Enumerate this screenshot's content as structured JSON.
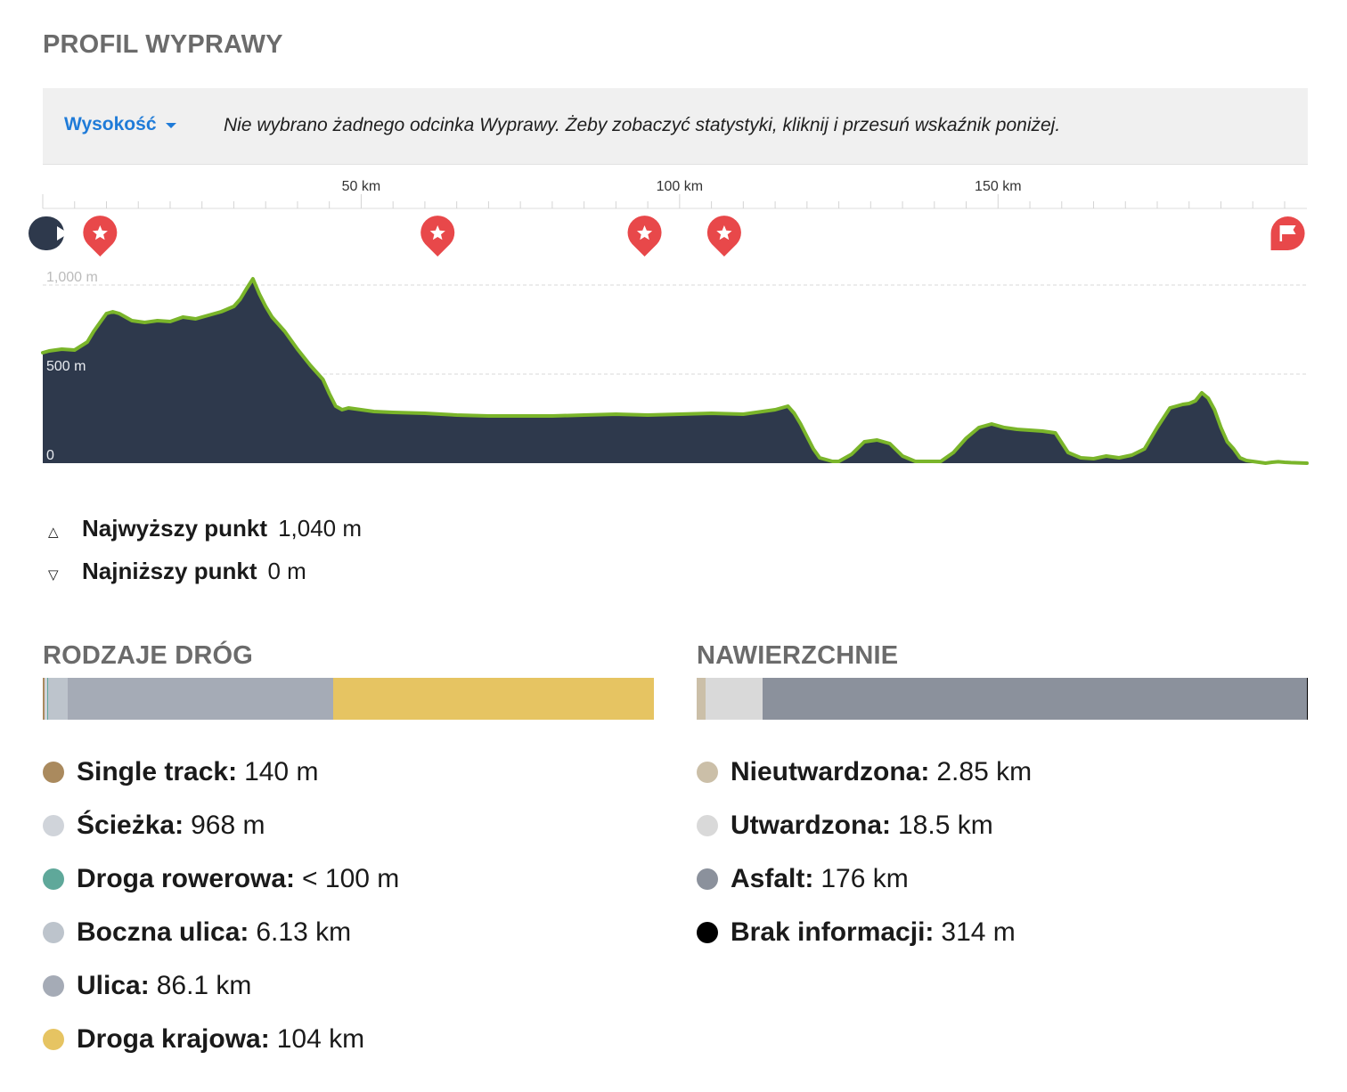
{
  "header": {
    "title": "PROFIL WYPRAWY"
  },
  "toolbar": {
    "metric_label": "Wysokość",
    "hint": "Nie wybrano żadnego odcinka Wyprawy. Żeby zobaczyć statystyki, kliknij i przesuń wskaźnik poniżej."
  },
  "chart_data": {
    "type": "area",
    "total_km": 198.5,
    "xlim": [
      0,
      198.5
    ],
    "ylim": [
      0,
      1040
    ],
    "x_ticks": [
      {
        "value": 50,
        "label": "50 km"
      },
      {
        "value": 100,
        "label": "100 km"
      },
      {
        "value": 150,
        "label": "150 km"
      }
    ],
    "y_ticks": [
      {
        "value": 0,
        "label": "0"
      },
      {
        "value": 500,
        "label": "500 m"
      },
      {
        "value": 1000,
        "label": "1,000 m"
      }
    ],
    "grid": true,
    "series": [
      {
        "x": [
          0,
          1,
          3,
          5,
          7,
          8,
          9,
          10,
          11,
          12,
          14,
          16,
          18,
          20,
          22,
          24,
          26,
          28,
          30,
          31,
          32,
          33,
          34,
          35,
          36,
          38,
          40,
          42,
          44,
          45,
          46,
          47,
          48,
          50,
          52,
          55,
          60,
          65,
          70,
          75,
          80,
          85,
          90,
          95,
          100,
          105,
          110,
          113,
          115,
          117,
          118,
          119,
          120,
          121,
          122,
          123,
          124,
          125,
          127,
          129,
          131,
          133,
          135,
          137,
          139,
          141,
          143,
          145,
          147,
          149,
          151,
          153,
          155,
          157,
          159,
          161,
          163,
          165,
          167,
          169,
          171,
          173,
          175,
          177,
          179,
          180,
          181,
          182,
          183,
          184,
          185,
          186,
          187,
          188,
          189,
          190,
          191,
          192,
          193,
          194,
          195,
          196,
          197,
          198.5
        ],
        "y": [
          620,
          630,
          640,
          635,
          680,
          740,
          790,
          840,
          850,
          840,
          800,
          790,
          800,
          795,
          820,
          810,
          830,
          850,
          880,
          920,
          980,
          1035,
          950,
          880,
          820,
          740,
          640,
          550,
          470,
          390,
          320,
          300,
          310,
          300,
          290,
          285,
          280,
          270,
          265,
          265,
          265,
          270,
          275,
          270,
          275,
          280,
          275,
          290,
          300,
          320,
          280,
          220,
          150,
          80,
          30,
          20,
          10,
          10,
          50,
          120,
          130,
          110,
          40,
          10,
          10,
          10,
          60,
          140,
          200,
          220,
          200,
          190,
          185,
          180,
          170,
          60,
          30,
          25,
          40,
          30,
          45,
          80,
          200,
          310,
          330,
          335,
          350,
          395,
          365,
          300,
          200,
          120,
          80,
          30,
          15,
          10,
          5,
          0,
          5,
          8,
          5,
          3,
          2,
          0
        ]
      }
    ],
    "markers": [
      {
        "km": 0,
        "type": "start"
      },
      {
        "km": 9,
        "type": "highlight"
      },
      {
        "km": 62,
        "type": "highlight"
      },
      {
        "km": 94.5,
        "type": "highlight"
      },
      {
        "km": 107,
        "type": "highlight"
      },
      {
        "km": 195.5,
        "type": "finish"
      }
    ],
    "colors": {
      "fill": "#2e394c",
      "line": "#7ab52a",
      "line_alt": "#d39a3e",
      "grid": "#d8d8d8",
      "marker": "#e8484a",
      "start_marker": "#2e394c"
    }
  },
  "stats": {
    "highest_label": "Najwyższy punkt",
    "highest_value": "1,040 m",
    "lowest_label": "Najniższy punkt",
    "lowest_value": "0 m",
    "highest_icon": "△",
    "lowest_icon": "▽"
  },
  "roads": {
    "title": "RODZAJE DRÓG",
    "bar": [
      {
        "value_km": 0.14,
        "color": "#aa8a5e"
      },
      {
        "value_km": 0.968,
        "color": "#d0d4da"
      },
      {
        "value_km": 0.05,
        "color": "#5fa89a"
      },
      {
        "value_km": 6.13,
        "color": "#bdc4cc"
      },
      {
        "value_km": 86.1,
        "color": "#a5abb6"
      },
      {
        "value_km": 104,
        "color": "#e6c462"
      }
    ],
    "items": [
      {
        "name": "Single track:",
        "value": "140 m",
        "color": "#aa8a5e"
      },
      {
        "name": "Ścieżka:",
        "value": "968 m",
        "color": "#d0d4da"
      },
      {
        "name": "Droga rowerowa:",
        "value": "< 100 m",
        "color": "#5fa89a"
      },
      {
        "name": "Boczna ulica:",
        "value": "6.13 km",
        "color": "#bdc4cc"
      },
      {
        "name": "Ulica:",
        "value": "86.1 km",
        "color": "#a5abb6"
      },
      {
        "name": "Droga krajowa:",
        "value": "104 km",
        "color": "#e6c462"
      }
    ]
  },
  "surfaces": {
    "title": "NAWIERZCHNIE",
    "bar": [
      {
        "value_km": 2.85,
        "color": "#cbbfa8"
      },
      {
        "value_km": 18.5,
        "color": "#d9d9d9"
      },
      {
        "value_km": 176,
        "color": "#8b919c"
      },
      {
        "value_km": 0.314,
        "color": "#000000"
      }
    ],
    "items": [
      {
        "name": "Nieutwardzona:",
        "value": "2.85 km",
        "color": "#cbbfa8"
      },
      {
        "name": "Utwardzona:",
        "value": "18.5 km",
        "color": "#d9d9d9"
      },
      {
        "name": "Asfalt:",
        "value": "176 km",
        "color": "#8b919c"
      },
      {
        "name": "Brak informacji:",
        "value": "314 m",
        "color": "#000000"
      }
    ]
  }
}
